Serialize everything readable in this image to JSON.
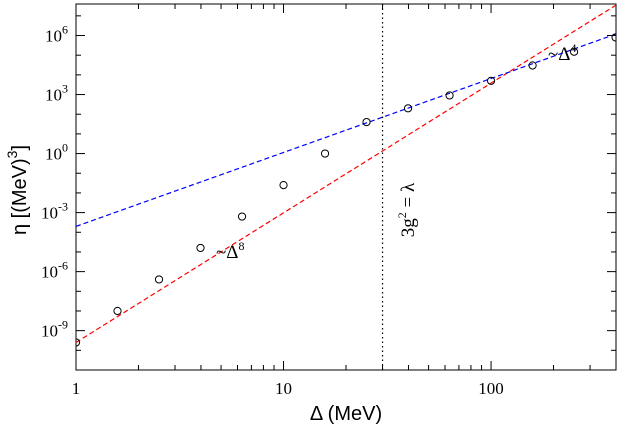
{
  "chart_data": {
    "type": "scatter",
    "xlabel": "Δ  (MeV)",
    "ylabel": "η  [(MeV)",
    "ylabel_exp": "3",
    "xscale": "log",
    "yscale": "log",
    "xlim": [
      1,
      400
    ],
    "ylim": [
      1e-11,
      40000000.0
    ],
    "grid": false,
    "x_ticks": [
      1,
      10,
      100
    ],
    "x_tick_labels": [
      "1",
      "10",
      "100"
    ],
    "y_ticks": [
      1e-09,
      1e-06,
      0.001,
      1,
      1000.0,
      1000000.0
    ],
    "y_tick_labels": [
      {
        "base": "10",
        "exp": "-9"
      },
      {
        "base": "10",
        "exp": "-6"
      },
      {
        "base": "10",
        "exp": "-3"
      },
      {
        "base": "10",
        "exp": "0"
      },
      {
        "base": "10",
        "exp": "3"
      },
      {
        "base": "10",
        "exp": "6"
      }
    ],
    "series": [
      {
        "marker": "open-circle",
        "color": "#000000",
        "x": [
          1,
          1.585,
          2.512,
          3.981,
          6.31,
          10,
          15.85,
          25.12,
          39.81,
          63.1,
          100,
          158.5,
          251.2,
          398.1
        ],
        "y": [
          2.5e-10,
          1e-08,
          4e-07,
          1.6e-05,
          0.00063,
          0.025,
          1.0,
          40,
          200,
          900,
          5000,
          30000,
          150000,
          800000
        ]
      },
      {
        "line": "dashed",
        "color": "#ff0000",
        "x": [
          1,
          400
        ],
        "y": [
          2.5e-10,
          35000000.0
        ],
        "label": "~Δ",
        "label_exp": "8"
      },
      {
        "line": "dashed",
        "color": "#0000ff",
        "x": [
          1,
          400
        ],
        "y": [
          0.0002,
          1200000.0
        ],
        "label": "~Δ",
        "label_exp": "4"
      }
    ],
    "vline": {
      "x": 30,
      "style": "dotted",
      "color": "#000000",
      "label": "3g",
      "label_exp": "2",
      "label_suffix": " = λ"
    }
  }
}
